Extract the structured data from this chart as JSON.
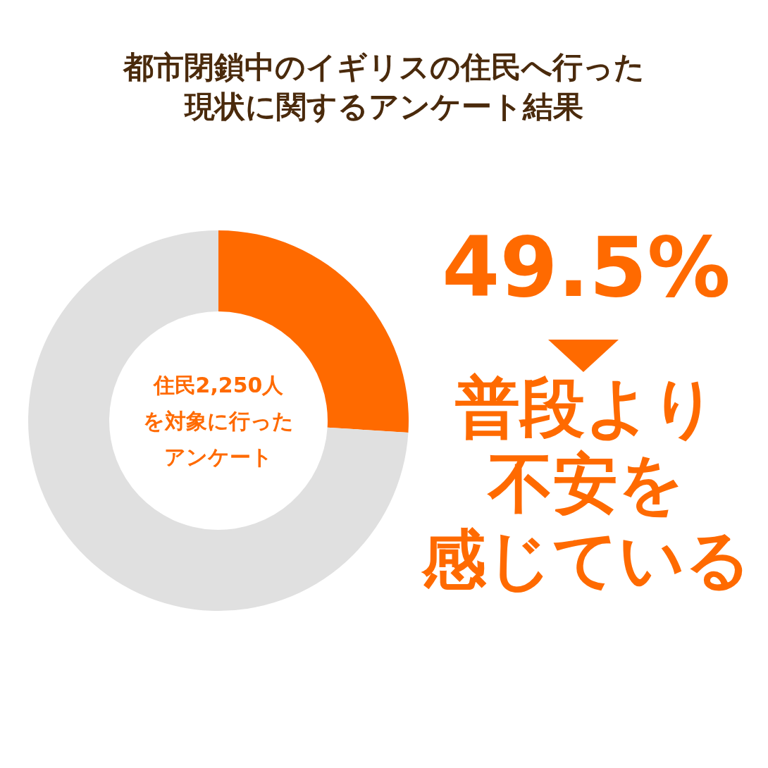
{
  "chart_data": {
    "type": "donut",
    "title": "都市閉鎖中のイギリスの住民へ行った現状に関するアンケート結果",
    "categories": [
      null,
      null
    ],
    "values": [
      26,
      74
    ],
    "colors": [
      "#ff6a00",
      "#e0e0e0"
    ],
    "annotations": [
      "住民2,250人を対象に行ったアンケート",
      "49.5%",
      "普段より不安を感じている"
    ],
    "legend": false
  }
}
